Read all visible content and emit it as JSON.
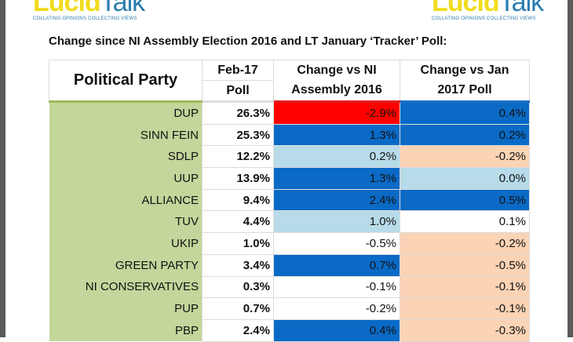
{
  "logo_text": {
    "lucid": "Lucid",
    "talk": "Talk",
    "tagline": "COLLATING OPINIONS COLLECTING VIEWS"
  },
  "title": "Change since NI Assembly Election 2016 and LT January ‘Tracker’ Poll:",
  "headers": {
    "party": "Political Party",
    "poll_top": "Feb-17",
    "poll_bottom": "Poll",
    "change_ni_top": "Change vs NI",
    "change_ni_bottom": "Assembly 2016",
    "change_jan_top": "Change vs Jan",
    "change_jan_bottom": "2017 Poll"
  },
  "colors": {
    "red": "#ff0000",
    "dark": "#0a6ac6",
    "light": "#b7dbe9",
    "peach": "#fbd3b5",
    "party_bg": "#c3d69b"
  },
  "rows": [
    {
      "party": "DUP",
      "poll": "26.3%",
      "ni": "-2.9%",
      "ni_tone": "red",
      "jan": "0.4%",
      "jan_tone": "dark"
    },
    {
      "party": "SINN FEIN",
      "poll": "25.3%",
      "ni": "1.3%",
      "ni_tone": "dark",
      "jan": "0.2%",
      "jan_tone": "dark"
    },
    {
      "party": "SDLP",
      "poll": "12.2%",
      "ni": "0.2%",
      "ni_tone": "light",
      "jan": "-0.2%",
      "jan_tone": "peach"
    },
    {
      "party": "UUP",
      "poll": "13.9%",
      "ni": "1.3%",
      "ni_tone": "dark",
      "jan": "0.0%",
      "jan_tone": "light"
    },
    {
      "party": "ALLIANCE",
      "poll": "9.4%",
      "ni": "2.4%",
      "ni_tone": "dark",
      "jan": "0.5%",
      "jan_tone": "dark"
    },
    {
      "party": "TUV",
      "poll": "4.4%",
      "ni": "1.0%",
      "ni_tone": "light",
      "jan": "0.1%",
      "jan_tone": "white"
    },
    {
      "party": "UKIP",
      "poll": "1.0%",
      "ni": "-0.5%",
      "ni_tone": "white",
      "jan": "-0.2%",
      "jan_tone": "peach"
    },
    {
      "party": "GREEN PARTY",
      "poll": "3.4%",
      "ni": "0.7%",
      "ni_tone": "dark",
      "jan": "-0.5%",
      "jan_tone": "peach"
    },
    {
      "party": "NI CONSERVATIVES",
      "poll": "0.3%",
      "ni": "-0.1%",
      "ni_tone": "white",
      "jan": "-0.1%",
      "jan_tone": "peach"
    },
    {
      "party": "PUP",
      "poll": "0.7%",
      "ni": "-0.2%",
      "ni_tone": "white",
      "jan": "-0.1%",
      "jan_tone": "peach"
    },
    {
      "party": "PBP",
      "poll": "2.4%",
      "ni": "0.4%",
      "ni_tone": "dark",
      "jan": "-0.3%",
      "jan_tone": "peach"
    }
  ]
}
